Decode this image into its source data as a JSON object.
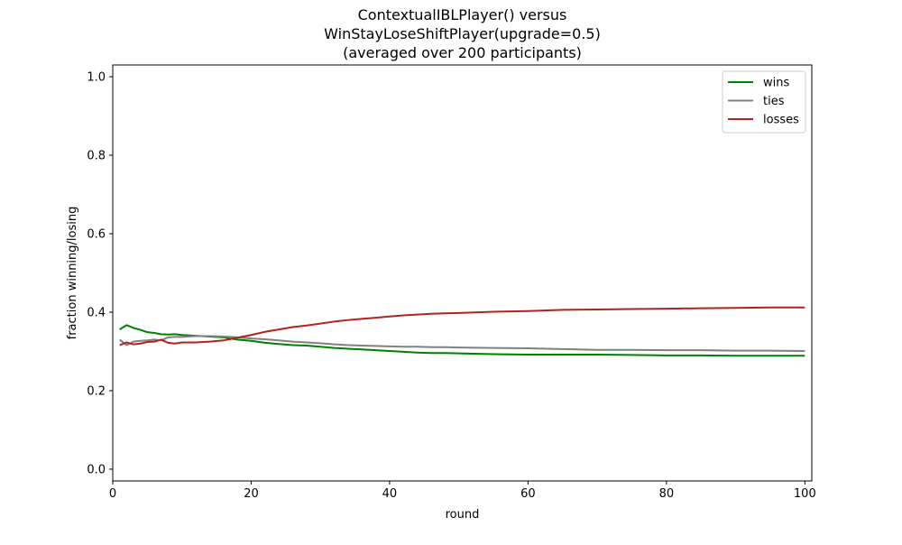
{
  "chart_data": {
    "type": "line",
    "title": [
      "ContextualIBLPlayer() versus",
      "WinStayLoseShiftPlayer(upgrade=0.5)",
      "(averaged over 200 participants)"
    ],
    "xlabel": "round",
    "ylabel": "fraction winning/losing",
    "xlim": [
      0,
      101
    ],
    "ylim": [
      -0.03,
      1.03
    ],
    "xticks": [
      0,
      20,
      40,
      60,
      80,
      100
    ],
    "xtick_labels": [
      "0",
      "20",
      "40",
      "60",
      "80",
      "100"
    ],
    "yticks": [
      0.0,
      0.2,
      0.4,
      0.6,
      0.8,
      1.0
    ],
    "ytick_labels": [
      "0.0",
      "0.2",
      "0.4",
      "0.6",
      "0.8",
      "1.0"
    ],
    "grid": false,
    "legend_position": "top-right",
    "x": [
      1,
      2,
      3,
      4,
      5,
      6,
      7,
      8,
      9,
      10,
      12,
      14,
      16,
      18,
      20,
      22,
      24,
      26,
      28,
      30,
      32,
      34,
      36,
      38,
      40,
      42,
      44,
      46,
      48,
      50,
      55,
      60,
      65,
      70,
      75,
      80,
      85,
      90,
      95,
      100
    ],
    "series": [
      {
        "name": "wins",
        "color": "#008000",
        "values": [
          0.356,
          0.367,
          0.36,
          0.355,
          0.349,
          0.347,
          0.344,
          0.343,
          0.344,
          0.342,
          0.34,
          0.338,
          0.336,
          0.33,
          0.327,
          0.322,
          0.319,
          0.316,
          0.315,
          0.312,
          0.309,
          0.307,
          0.305,
          0.303,
          0.301,
          0.299,
          0.297,
          0.296,
          0.296,
          0.295,
          0.293,
          0.292,
          0.292,
          0.292,
          0.291,
          0.29,
          0.29,
          0.289,
          0.289,
          0.289
        ]
      },
      {
        "name": "ties",
        "color": "#808080",
        "values": [
          0.33,
          0.316,
          0.325,
          0.327,
          0.328,
          0.33,
          0.328,
          0.336,
          0.337,
          0.337,
          0.339,
          0.339,
          0.338,
          0.336,
          0.333,
          0.331,
          0.328,
          0.325,
          0.323,
          0.321,
          0.318,
          0.316,
          0.315,
          0.314,
          0.313,
          0.312,
          0.312,
          0.311,
          0.311,
          0.31,
          0.309,
          0.308,
          0.306,
          0.304,
          0.304,
          0.303,
          0.303,
          0.302,
          0.302,
          0.301
        ]
      },
      {
        "name": "losses",
        "color": "#b22222",
        "values": [
          0.316,
          0.323,
          0.318,
          0.32,
          0.324,
          0.325,
          0.33,
          0.322,
          0.32,
          0.323,
          0.323,
          0.325,
          0.328,
          0.335,
          0.342,
          0.35,
          0.356,
          0.362,
          0.366,
          0.371,
          0.376,
          0.38,
          0.383,
          0.386,
          0.389,
          0.392,
          0.394,
          0.396,
          0.397,
          0.398,
          0.401,
          0.403,
          0.406,
          0.407,
          0.408,
          0.409,
          0.41,
          0.411,
          0.412,
          0.412
        ]
      }
    ]
  }
}
